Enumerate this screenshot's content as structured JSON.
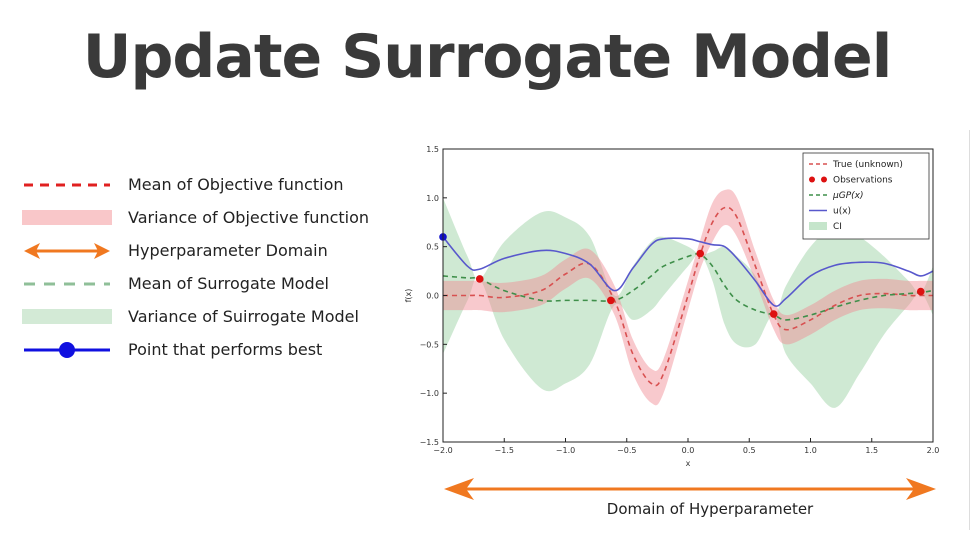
{
  "title": "Update Surrogate Model",
  "legend_left": [
    {
      "label": "Mean of Objective function",
      "style": "dashed",
      "color": "#e02020"
    },
    {
      "label": "Variance of Objective function",
      "style": "band",
      "color": "#f9c7c9"
    },
    {
      "label": "Hyperparameter Domain",
      "style": "double-arrow",
      "color": "#f07820"
    },
    {
      "label": "Mean of Surrogate Model",
      "style": "dashed",
      "color": "#8fbf98"
    },
    {
      "label": "Variance of Suirrogate Model",
      "style": "band",
      "color": "#d3ead6"
    },
    {
      "label": "Point that performs best",
      "style": "dot-line",
      "color": "#1010e0"
    }
  ],
  "domain_label": "Domain of Hyperparameter",
  "chart_data": {
    "type": "line",
    "xlabel": "x",
    "ylabel": "f(x)",
    "xlim": [
      -2.0,
      2.0
    ],
    "ylim": [
      -1.5,
      1.5
    ],
    "xticks": [
      "−2.0",
      "−1.5",
      "−1.0",
      "−0.5",
      "0.0",
      "0.5",
      "1.0",
      "1.5",
      "2.0"
    ],
    "yticks": [
      "1.5",
      "1.0",
      "0.5",
      "0.0",
      "−0.5",
      "−1.0",
      "−1.5"
    ],
    "legend": {
      "placement": "top-right",
      "entries": [
        "True (unknown)",
        "Observations",
        "μGP(x)",
        "u(x)",
        "CI"
      ]
    },
    "x": [
      -2.0,
      -1.8,
      -1.7,
      -1.5,
      -1.2,
      -1.0,
      -0.8,
      -0.6,
      -0.45,
      -0.3,
      -0.2,
      0.0,
      0.1,
      0.2,
      0.3,
      0.4,
      0.55,
      0.7,
      0.8,
      1.0,
      1.2,
      1.4,
      1.6,
      1.8,
      1.9,
      2.0
    ],
    "series": [
      {
        "name": "True (unknown)",
        "color": "#e06060",
        "values": [
          0.0,
          0.0,
          0.0,
          -0.02,
          0.05,
          0.22,
          0.32,
          -0.05,
          -0.6,
          -0.9,
          -0.8,
          0.0,
          0.42,
          0.75,
          0.9,
          0.8,
          0.3,
          -0.2,
          -0.35,
          -0.25,
          -0.1,
          0.0,
          0.02,
          0.0,
          0.0,
          0.0
        ],
        "upper": [
          0.15,
          0.15,
          0.15,
          0.13,
          0.2,
          0.37,
          0.47,
          0.1,
          -0.45,
          -0.75,
          -0.65,
          0.15,
          0.57,
          0.95,
          1.08,
          1.0,
          0.45,
          -0.05,
          -0.2,
          -0.1,
          0.05,
          0.15,
          0.17,
          0.15,
          0.15,
          0.15
        ],
        "lower": [
          -0.15,
          -0.15,
          -0.15,
          -0.17,
          -0.1,
          0.07,
          0.17,
          -0.2,
          -0.8,
          -1.1,
          -1.0,
          -0.15,
          0.27,
          0.55,
          0.72,
          0.6,
          0.15,
          -0.35,
          -0.5,
          -0.4,
          -0.25,
          -0.15,
          -0.13,
          -0.15,
          -0.15,
          -0.15
        ]
      },
      {
        "name": "μGP(x)",
        "color": "#4a9a55",
        "values": [
          0.2,
          0.18,
          0.17,
          0.05,
          -0.05,
          -0.05,
          -0.05,
          -0.05,
          0.05,
          0.2,
          0.3,
          0.4,
          0.42,
          0.3,
          0.1,
          -0.05,
          -0.15,
          -0.2,
          -0.25,
          -0.2,
          -0.12,
          -0.05,
          0.0,
          0.02,
          0.03,
          0.05
        ],
        "upper": [
          1.0,
          0.4,
          0.17,
          0.55,
          0.85,
          0.8,
          0.6,
          0.0,
          0.3,
          0.55,
          0.6,
          0.5,
          0.42,
          0.45,
          0.5,
          0.4,
          0.2,
          -0.2,
          0.1,
          0.5,
          0.7,
          0.6,
          0.4,
          0.15,
          0.03,
          0.3
        ],
        "lower": [
          -0.6,
          -0.05,
          0.17,
          -0.45,
          -0.95,
          -0.9,
          -0.7,
          -0.1,
          -0.25,
          -0.15,
          0.0,
          0.3,
          0.42,
          0.15,
          -0.3,
          -0.5,
          -0.5,
          -0.2,
          -0.6,
          -0.9,
          -1.15,
          -0.8,
          -0.4,
          -0.1,
          0.03,
          -0.2
        ]
      },
      {
        "name": "u(x)",
        "color": "#5555cc",
        "values": [
          0.6,
          0.3,
          0.27,
          0.38,
          0.46,
          0.43,
          0.32,
          0.05,
          0.28,
          0.52,
          0.58,
          0.58,
          0.55,
          0.52,
          0.5,
          0.38,
          0.15,
          -0.1,
          -0.03,
          0.2,
          0.31,
          0.34,
          0.33,
          0.25,
          0.2,
          0.25
        ]
      }
    ],
    "observations": {
      "name": "Observations",
      "color": "#dd1111",
      "x": [
        -1.7,
        -0.63,
        0.1,
        0.7,
        1.9
      ],
      "y": [
        0.17,
        -0.05,
        0.43,
        -0.19,
        0.04
      ]
    },
    "best_point": {
      "x": -2.0,
      "y": 0.6,
      "color": "#1010cc"
    }
  }
}
